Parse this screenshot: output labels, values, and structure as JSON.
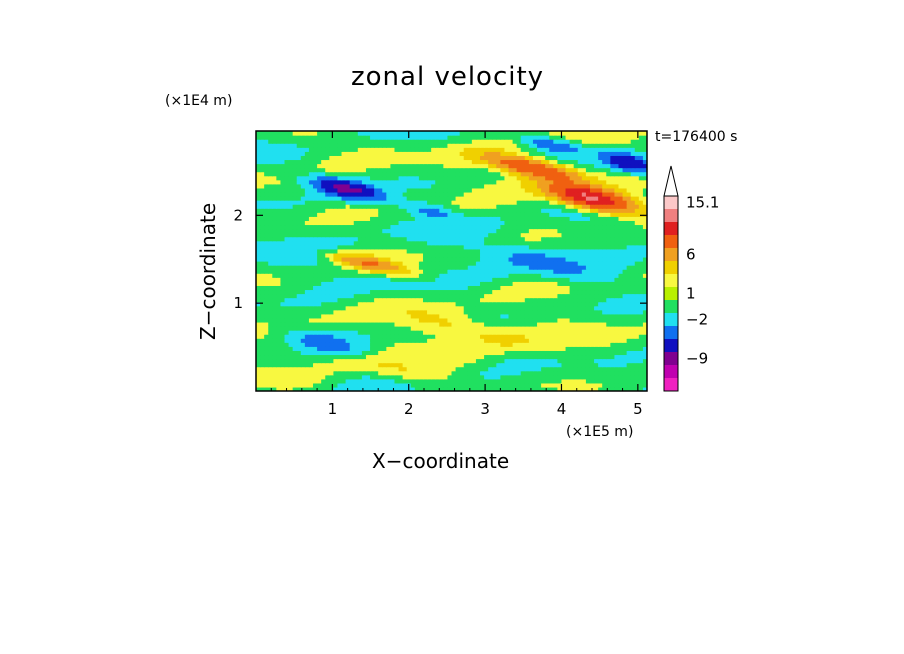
{
  "chart_data": {
    "type": "heatmap",
    "title": "zonal velocity",
    "xlabel": "X−coordinate",
    "ylabel": "Z−coordinate",
    "x_unit_label": "(×1E5 m)",
    "y_unit_label": "(×1E4 m)",
    "timestamp_label": "t=176400 s",
    "xlim": [
      0,
      5.12
    ],
    "ylim": [
      0,
      2.96
    ],
    "x_ticks": [
      1,
      2,
      3,
      4,
      5
    ],
    "x_tick_labels": [
      "1",
      "2",
      "3",
      "4",
      "5"
    ],
    "y_ticks": [
      1,
      2
    ],
    "y_tick_labels": [
      "1",
      "2"
    ],
    "field_description": "Layered zonal wind field with alternating positive (yellow-orange-red) and negative (cyan-blue) bands tilting downward toward larger x; strongest positive core near x=4.4, z=2.2; strongest negative cores near x=1.2, z=2.3 and x=4.9, z=2.6.",
    "features": [
      {
        "kind": "pos",
        "x": 4.4,
        "z": 2.2,
        "rx": 0.55,
        "rz": 0.12,
        "amp": 12
      },
      {
        "kind": "pos",
        "x": 3.6,
        "z": 2.55,
        "rx": 0.6,
        "rz": 0.1,
        "amp": 8
      },
      {
        "kind": "pos",
        "x": 1.5,
        "z": 1.45,
        "rx": 0.5,
        "rz": 0.08,
        "amp": 5
      },
      {
        "kind": "pos",
        "x": 2.8,
        "z": 0.7,
        "rx": 0.9,
        "rz": 0.15,
        "amp": 2
      },
      {
        "kind": "pos",
        "x": 1.8,
        "z": 0.25,
        "rx": 0.9,
        "rz": 0.12,
        "amp": 1.5
      },
      {
        "kind": "neg",
        "x": 1.2,
        "z": 2.3,
        "rx": 0.45,
        "rz": 0.1,
        "amp": -8
      },
      {
        "kind": "neg",
        "x": 4.9,
        "z": 2.6,
        "rx": 0.35,
        "rz": 0.1,
        "amp": -7
      },
      {
        "kind": "neg",
        "x": 3.9,
        "z": 2.8,
        "rx": 0.4,
        "rz": 0.07,
        "amp": -4
      },
      {
        "kind": "neg",
        "x": 3.8,
        "z": 1.45,
        "rx": 0.7,
        "rz": 0.12,
        "amp": -2.5
      },
      {
        "kind": "neg",
        "x": 0.9,
        "z": 0.55,
        "rx": 0.5,
        "rz": 0.12,
        "amp": -3
      },
      {
        "kind": "neg",
        "x": 2.3,
        "z": 2.05,
        "rx": 0.3,
        "rz": 0.07,
        "amp": -3
      }
    ],
    "colorbar": {
      "levels": [
        "extend-max",
        "15.1",
        "",
        "",
        "6",
        "",
        "",
        "1",
        "",
        "",
        "-2",
        "",
        "",
        "-9",
        "",
        "extend-min"
      ],
      "colors": [
        "#ffffff",
        "#fbc8c8",
        "#f08080",
        "#e02020",
        "#f06010",
        "#f0a020",
        "#f0d000",
        "#f8f840",
        "#b8f000",
        "#20e060",
        "#20e0f0",
        "#1070f0",
        "#1010c0",
        "#800090",
        "#c000b0",
        "#f020c0"
      ],
      "tick_labels": [
        "15.1",
        "6",
        "1",
        "−2",
        "−9"
      ]
    }
  }
}
